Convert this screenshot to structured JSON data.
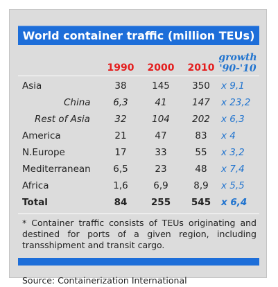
{
  "title": "World container traffic (million TEUs)",
  "headers": {
    "y1990": "1990",
    "y2000": "2000",
    "y2010": "2010",
    "growth_line1": "growth",
    "growth_line2": "'90-'10"
  },
  "rows": [
    {
      "label": "Asia",
      "v1990": "38",
      "v2000": "145",
      "v2010": "350",
      "growth": "x 9,1"
    },
    {
      "label": "China",
      "v1990": "6,3",
      "v2000": "41",
      "v2010": "147",
      "growth": "x 23,2"
    },
    {
      "label": "Rest of Asia",
      "v1990": "32",
      "v2000": "104",
      "v2010": "202",
      "growth": "x 6,3"
    },
    {
      "label": "America",
      "v1990": "21",
      "v2000": "47",
      "v2010": "83",
      "growth": "x 4"
    },
    {
      "label": "N.Europe",
      "v1990": "17",
      "v2000": "33",
      "v2010": "55",
      "growth": "x 3,2"
    },
    {
      "label": "Mediterranean",
      "v1990": "6,5",
      "v2000": "23",
      "v2010": "48",
      "growth": "x 7,4"
    },
    {
      "label": "Africa",
      "v1990": "1,6",
      "v2000": "6,9",
      "v2010": "8,9",
      "growth": "x 5,5"
    },
    {
      "label": "Total",
      "v1990": "84",
      "v2000": "255",
      "v2010": "545",
      "growth": "x 6,4"
    }
  ],
  "footnote": "* Container traffic consists of TEUs originating and destined for ports of a given region, including transshipment and transit cargo.",
  "source": "Source: Containerization International",
  "colors": {
    "panel": "#dcdcdc",
    "bar": "#1d6ed9",
    "year_header": "#e41d1d",
    "growth": "#2174cf"
  }
}
